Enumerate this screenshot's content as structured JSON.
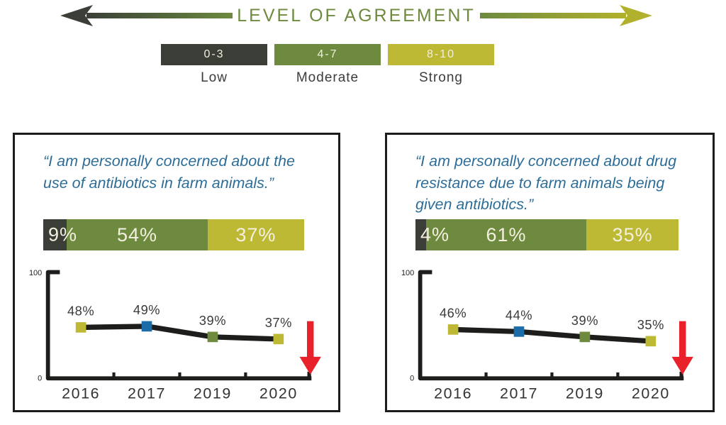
{
  "header": {
    "title": "LEVEL OF AGREEMENT",
    "title_color": "#6d8a3f",
    "arrow_left_color": "#3b3f37",
    "arrow_right_color": "#b2b12d"
  },
  "legend": {
    "items": [
      {
        "range": "0-3",
        "label": "Low",
        "color": "#3a3e36"
      },
      {
        "range": "4-7",
        "label": "Moderate",
        "color": "#6d8a3f"
      },
      {
        "range": "8-10",
        "label": "Strong",
        "color": "#bdb935"
      }
    ]
  },
  "panels": [
    {
      "quote": "“I am personally concerned about the use of antibiotics in farm animals.”"
    },
    {
      "quote": "“I am personally concerned about drug resistance due to farm animals being given antibiotics.”"
    }
  ],
  "chart_data": [
    {
      "type": "bar",
      "stacked": true,
      "panel": "left",
      "title": "Agreement distribution — concern about use of antibiotics in farm animals",
      "categories": [
        "Low (0-3)",
        "Moderate (4-7)",
        "Strong (8-10)"
      ],
      "values": [
        9,
        54,
        37
      ],
      "labels": [
        "9%",
        "54%",
        "37%"
      ],
      "colors": [
        "#3a3e36",
        "#6d8a3f",
        "#bdb935"
      ]
    },
    {
      "type": "line",
      "panel": "left",
      "title": "Strong agreement over time — concern about use of antibiotics in farm animals",
      "categories": [
        "2016",
        "2017",
        "2019",
        "2020"
      ],
      "values": [
        48,
        49,
        39,
        37
      ],
      "labels": [
        "48%",
        "49%",
        "39%",
        "37%"
      ],
      "marker_colors": [
        "#bdb935",
        "#1b6ca8",
        "#6d8a3f",
        "#bdb935"
      ],
      "line_color": "#1d1d1b",
      "ylim": [
        0,
        100
      ],
      "yticks": [
        0,
        100
      ],
      "trend": "down",
      "trend_color": "#e8212b"
    },
    {
      "type": "bar",
      "stacked": true,
      "panel": "right",
      "title": "Agreement distribution — concern about drug resistance from farm animal antibiotics",
      "categories": [
        "Low (0-3)",
        "Moderate (4-7)",
        "Strong (8-10)"
      ],
      "values": [
        4,
        61,
        35
      ],
      "labels": [
        "4%",
        "61%",
        "35%"
      ],
      "colors": [
        "#3a3e36",
        "#6d8a3f",
        "#bdb935"
      ]
    },
    {
      "type": "line",
      "panel": "right",
      "title": "Strong agreement over time — concern about drug resistance from farm animal antibiotics",
      "categories": [
        "2016",
        "2017",
        "2019",
        "2020"
      ],
      "values": [
        46,
        44,
        39,
        35
      ],
      "labels": [
        "46%",
        "44%",
        "39%",
        "35%"
      ],
      "marker_colors": [
        "#bdb935",
        "#1b6ca8",
        "#6d8a3f",
        "#bdb935"
      ],
      "line_color": "#1d1d1b",
      "ylim": [
        0,
        100
      ],
      "yticks": [
        0,
        100
      ],
      "trend": "down",
      "trend_color": "#e8212b"
    }
  ]
}
